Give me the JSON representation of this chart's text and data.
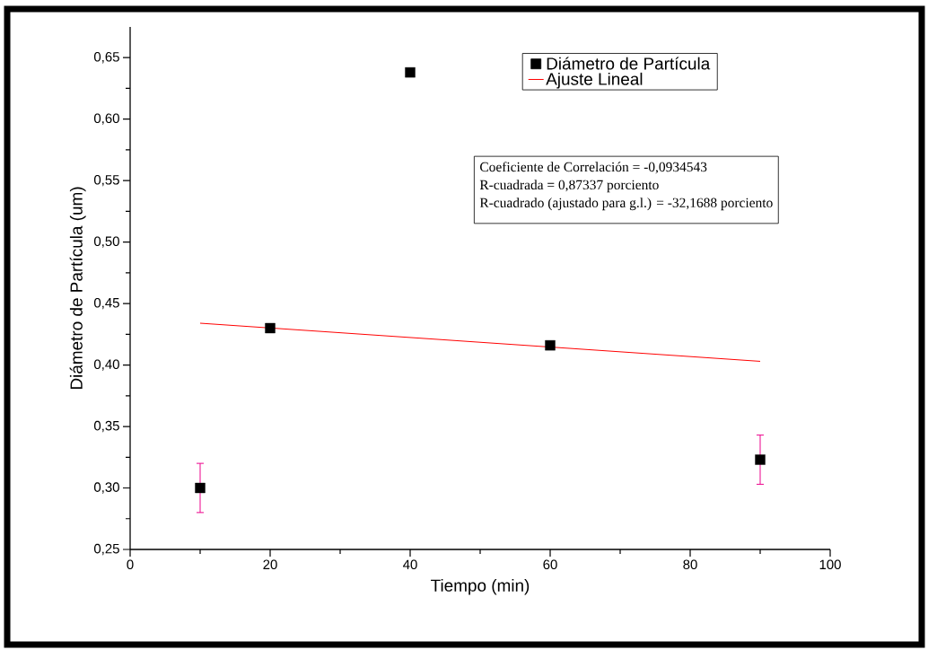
{
  "chart_data": {
    "type": "scatter",
    "xlabel": "Tiempo (min)",
    "ylabel": "Diámetro de Partícula (um)",
    "xlim": [
      0,
      100
    ],
    "ylim": [
      0.25,
      0.675
    ],
    "xticks": [
      0,
      20,
      40,
      60,
      80,
      100
    ],
    "yticks": [
      {
        "value": 0.25,
        "label": "0,25"
      },
      {
        "value": 0.3,
        "label": "0,30"
      },
      {
        "value": 0.35,
        "label": "0,35"
      },
      {
        "value": 0.4,
        "label": "0,40"
      },
      {
        "value": 0.45,
        "label": "0,45"
      },
      {
        "value": 0.5,
        "label": "0,50"
      },
      {
        "value": 0.55,
        "label": "0,55"
      },
      {
        "value": 0.6,
        "label": "0,60"
      },
      {
        "value": 0.65,
        "label": "0,65"
      }
    ],
    "legend": "top right",
    "grid": false,
    "series": [
      {
        "name": "Diámetro de Partícula",
        "marker": "square",
        "color": "#000000",
        "x": [
          10,
          20,
          40,
          60,
          90
        ],
        "values": [
          0.3,
          0.43,
          0.638,
          0.416,
          0.323
        ],
        "errors": [
          0.02,
          null,
          null,
          null,
          0.02
        ]
      },
      {
        "name": "Ajuste Lineal",
        "type": "line",
        "marker": "none",
        "color": "#ff0000",
        "x": [
          10,
          90
        ],
        "values": [
          0.434,
          0.403
        ]
      }
    ],
    "annotations": [
      "Coeficiente de Correlación = -0,0934543",
      "R-cuadrada = 0,87337 porciento",
      "R-cuadrado (ajustado para g.l.) = -32,1688 porciento"
    ]
  }
}
